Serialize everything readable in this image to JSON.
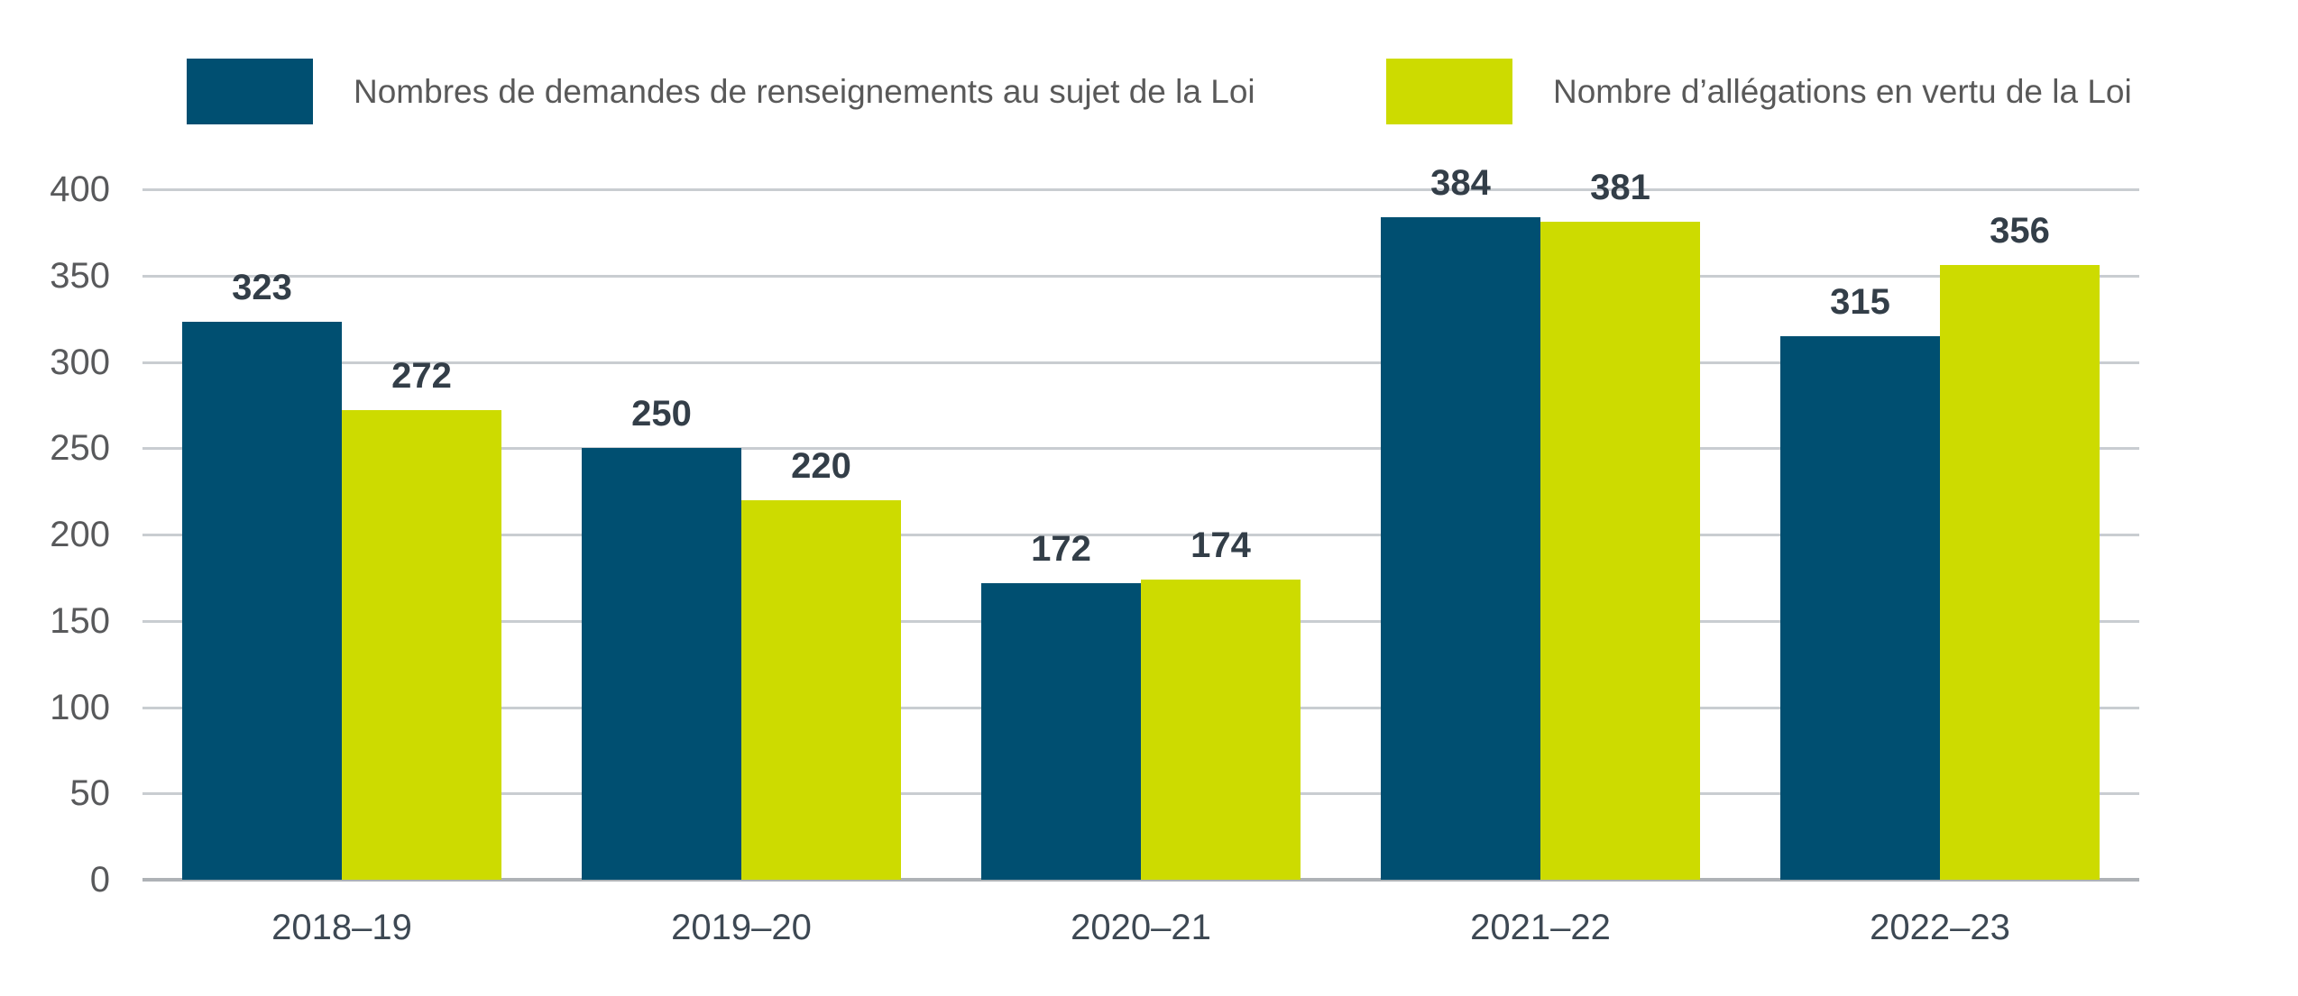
{
  "page": {
    "background": "#FFFFFF"
  },
  "legend": {
    "position": "top",
    "items": [
      {
        "label": "Nombres de demandes de renseignements au sujet de la Loi",
        "color": "#004F71"
      },
      {
        "label": "Nombre d’allégations en vertu de la Loi",
        "color": "#CDDB00"
      }
    ]
  },
  "chart_data": {
    "type": "bar",
    "title": "",
    "xlabel": "",
    "ylabel": "",
    "categories": [
      "2018–19",
      "2019–20",
      "2020–21",
      "2021–22",
      "2022–23"
    ],
    "series": [
      {
        "name": "Nombres de demandes de renseignements au sujet de la Loi",
        "color": "#004F71",
        "values": [
          323,
          250,
          172,
          384,
          315
        ]
      },
      {
        "name": "Nombre d’allégations en vertu de la Loi",
        "color": "#CDDB00",
        "values": [
          272,
          220,
          174,
          381,
          356
        ]
      }
    ],
    "ylim": [
      0,
      400
    ],
    "yticks": [
      0,
      50,
      100,
      150,
      200,
      250,
      300,
      350,
      400
    ],
    "grid": "horizontal",
    "legend_position": "top",
    "value_labels": true
  },
  "colors": {
    "series1": "#004F71",
    "series2": "#CDDB00",
    "value_label": "#333E48",
    "x_tick_label": "#3D4853",
    "y_tick_label": "#58595B",
    "legend_text": "#595959",
    "gridline": "#C9CDD1",
    "baseline": "#AEB2B6"
  }
}
